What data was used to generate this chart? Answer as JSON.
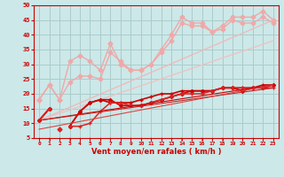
{
  "xlabel": "Vent moyen/en rafales ( km/h )",
  "xlim": [
    -0.5,
    23.5
  ],
  "ylim": [
    5,
    50
  ],
  "yticks": [
    5,
    10,
    15,
    20,
    25,
    30,
    35,
    40,
    45,
    50
  ],
  "xticks": [
    0,
    1,
    2,
    3,
    4,
    5,
    6,
    7,
    8,
    9,
    10,
    11,
    12,
    13,
    14,
    15,
    16,
    17,
    18,
    19,
    20,
    21,
    22,
    23
  ],
  "bg_color": "#cce8e8",
  "grid_color": "#aacccc",
  "series": [
    {
      "comment": "light pink upper line with diamond markers - top series",
      "x": [
        0,
        1,
        2,
        3,
        4,
        5,
        6,
        7,
        8,
        9,
        10,
        11,
        12,
        13,
        14,
        15,
        16,
        17,
        18,
        19,
        20,
        21,
        22,
        23
      ],
      "y": [
        18,
        23,
        18,
        31,
        33,
        31,
        28,
        37,
        30,
        28,
        28,
        30,
        35,
        40,
        46,
        44,
        44,
        41,
        43,
        46,
        46,
        46,
        48,
        45
      ],
      "color": "#f0a8a8",
      "lw": 1.0,
      "marker": "D",
      "ms": 2.5
    },
    {
      "comment": "light pink second line with diamond markers",
      "x": [
        0,
        1,
        2,
        3,
        4,
        5,
        6,
        7,
        8,
        9,
        10,
        11,
        12,
        13,
        14,
        15,
        16,
        17,
        18,
        19,
        20,
        21,
        22,
        23
      ],
      "y": [
        18,
        23,
        18,
        24,
        26,
        26,
        25,
        34,
        31,
        28,
        28,
        30,
        34,
        38,
        44,
        43,
        43,
        41,
        42,
        45,
        44,
        44,
        46,
        44
      ],
      "color": "#f0a8a8",
      "lw": 1.0,
      "marker": "D",
      "ms": 2.5
    },
    {
      "comment": "light pink straight rising line (no markers)",
      "x": [
        0,
        23
      ],
      "y": [
        11,
        45
      ],
      "color": "#f0b8b8",
      "lw": 0.9,
      "marker": null,
      "ms": 0
    },
    {
      "comment": "lighter pink straight rising line (no markers)",
      "x": [
        0,
        23
      ],
      "y": [
        11,
        38
      ],
      "color": "#f0c0c0",
      "lw": 0.9,
      "marker": null,
      "ms": 0
    },
    {
      "comment": "dark red top marked line - with + markers",
      "x": [
        0,
        1,
        2,
        3,
        4,
        5,
        6,
        7,
        8,
        9,
        10,
        11,
        12,
        13,
        14,
        15,
        16,
        17,
        18,
        19,
        20,
        21,
        22,
        23
      ],
      "y": [
        11,
        15,
        null,
        9,
        14,
        17,
        18,
        17,
        17,
        17,
        18,
        19,
        20,
        20,
        21,
        21,
        21,
        21,
        22,
        22,
        22,
        22,
        23,
        23
      ],
      "color": "#cc0000",
      "lw": 1.2,
      "marker": "+",
      "ms": 3.5
    },
    {
      "comment": "dark red line with diamond markers",
      "x": [
        0,
        1,
        2,
        3,
        4,
        5,
        6,
        7,
        8,
        9,
        10,
        11,
        12,
        13,
        14,
        15,
        16,
        17,
        18,
        19,
        20,
        21,
        22,
        23
      ],
      "y": [
        11,
        15,
        null,
        9,
        14,
        17,
        18,
        18,
        16,
        16,
        16,
        17,
        18,
        19,
        20,
        21,
        21,
        21,
        22,
        22,
        21,
        22,
        22,
        23
      ],
      "color": "#cc0000",
      "lw": 1.2,
      "marker": "D",
      "ms": 2.0
    },
    {
      "comment": "medium red line with cross markers",
      "x": [
        0,
        1,
        2,
        3,
        4,
        5,
        6,
        7,
        8,
        9,
        10,
        11,
        12,
        13,
        14,
        15,
        16,
        17,
        18,
        19,
        20,
        21,
        22,
        23
      ],
      "y": [
        11,
        15,
        null,
        9,
        9,
        10,
        14,
        17,
        17,
        16,
        16,
        17,
        18,
        19,
        20,
        20,
        20,
        21,
        22,
        22,
        22,
        22,
        22,
        22
      ],
      "color": "#dd2222",
      "lw": 1.1,
      "marker": "+",
      "ms": 3.0
    },
    {
      "comment": "dark red straight thin line rising",
      "x": [
        0,
        23
      ],
      "y": [
        11,
        23
      ],
      "color": "#cc0000",
      "lw": 0.8,
      "marker": null,
      "ms": 0
    },
    {
      "comment": "dark red straight thin line rising 2",
      "x": [
        0,
        23
      ],
      "y": [
        11,
        22
      ],
      "color": "#cc2222",
      "lw": 0.8,
      "marker": null,
      "ms": 0
    },
    {
      "comment": "medium red straight thin line rising",
      "x": [
        0,
        23
      ],
      "y": [
        8,
        23
      ],
      "color": "#dd4444",
      "lw": 0.8,
      "marker": null,
      "ms": 0
    },
    {
      "comment": "single point at bottom left area",
      "x": [
        2
      ],
      "y": [
        8
      ],
      "color": "#dd2222",
      "lw": 1.0,
      "marker": "D",
      "ms": 2.5
    }
  ]
}
